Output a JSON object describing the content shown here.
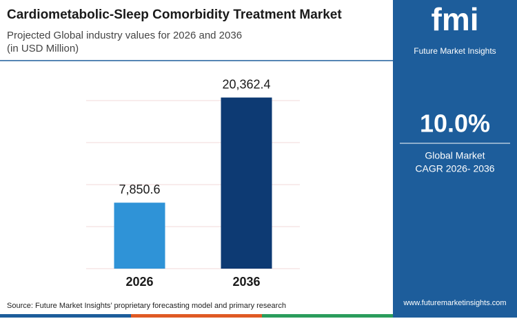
{
  "chart_data": {
    "type": "bar",
    "title": "Cardiometabolic-Sleep Comorbidity Treatment Market",
    "subtitle": [
      "Projected Global industry values for 2026 and 2036",
      "(in USD Million)"
    ],
    "categories": [
      "2026",
      "2036"
    ],
    "values": [
      7850.6,
      20362.4
    ],
    "value_labels": [
      "7,850.6",
      "20,362.4"
    ],
    "colors": [
      "#2f93d7",
      "#0d3a73"
    ],
    "ylim": [
      0,
      20000
    ],
    "yticks": [
      0,
      5000,
      10000,
      15000,
      20000
    ],
    "grid": true,
    "source": "Source: Future Market Insights’ proprietary forecasting model and primary research"
  },
  "sidebar": {
    "logo": "fmi",
    "brand": "Future Market Insights",
    "cagr": "10.0%",
    "cagr_label": [
      "Global Market",
      "CAGR 2026- 2036"
    ],
    "url": "www.futuremarketinsights.com"
  }
}
